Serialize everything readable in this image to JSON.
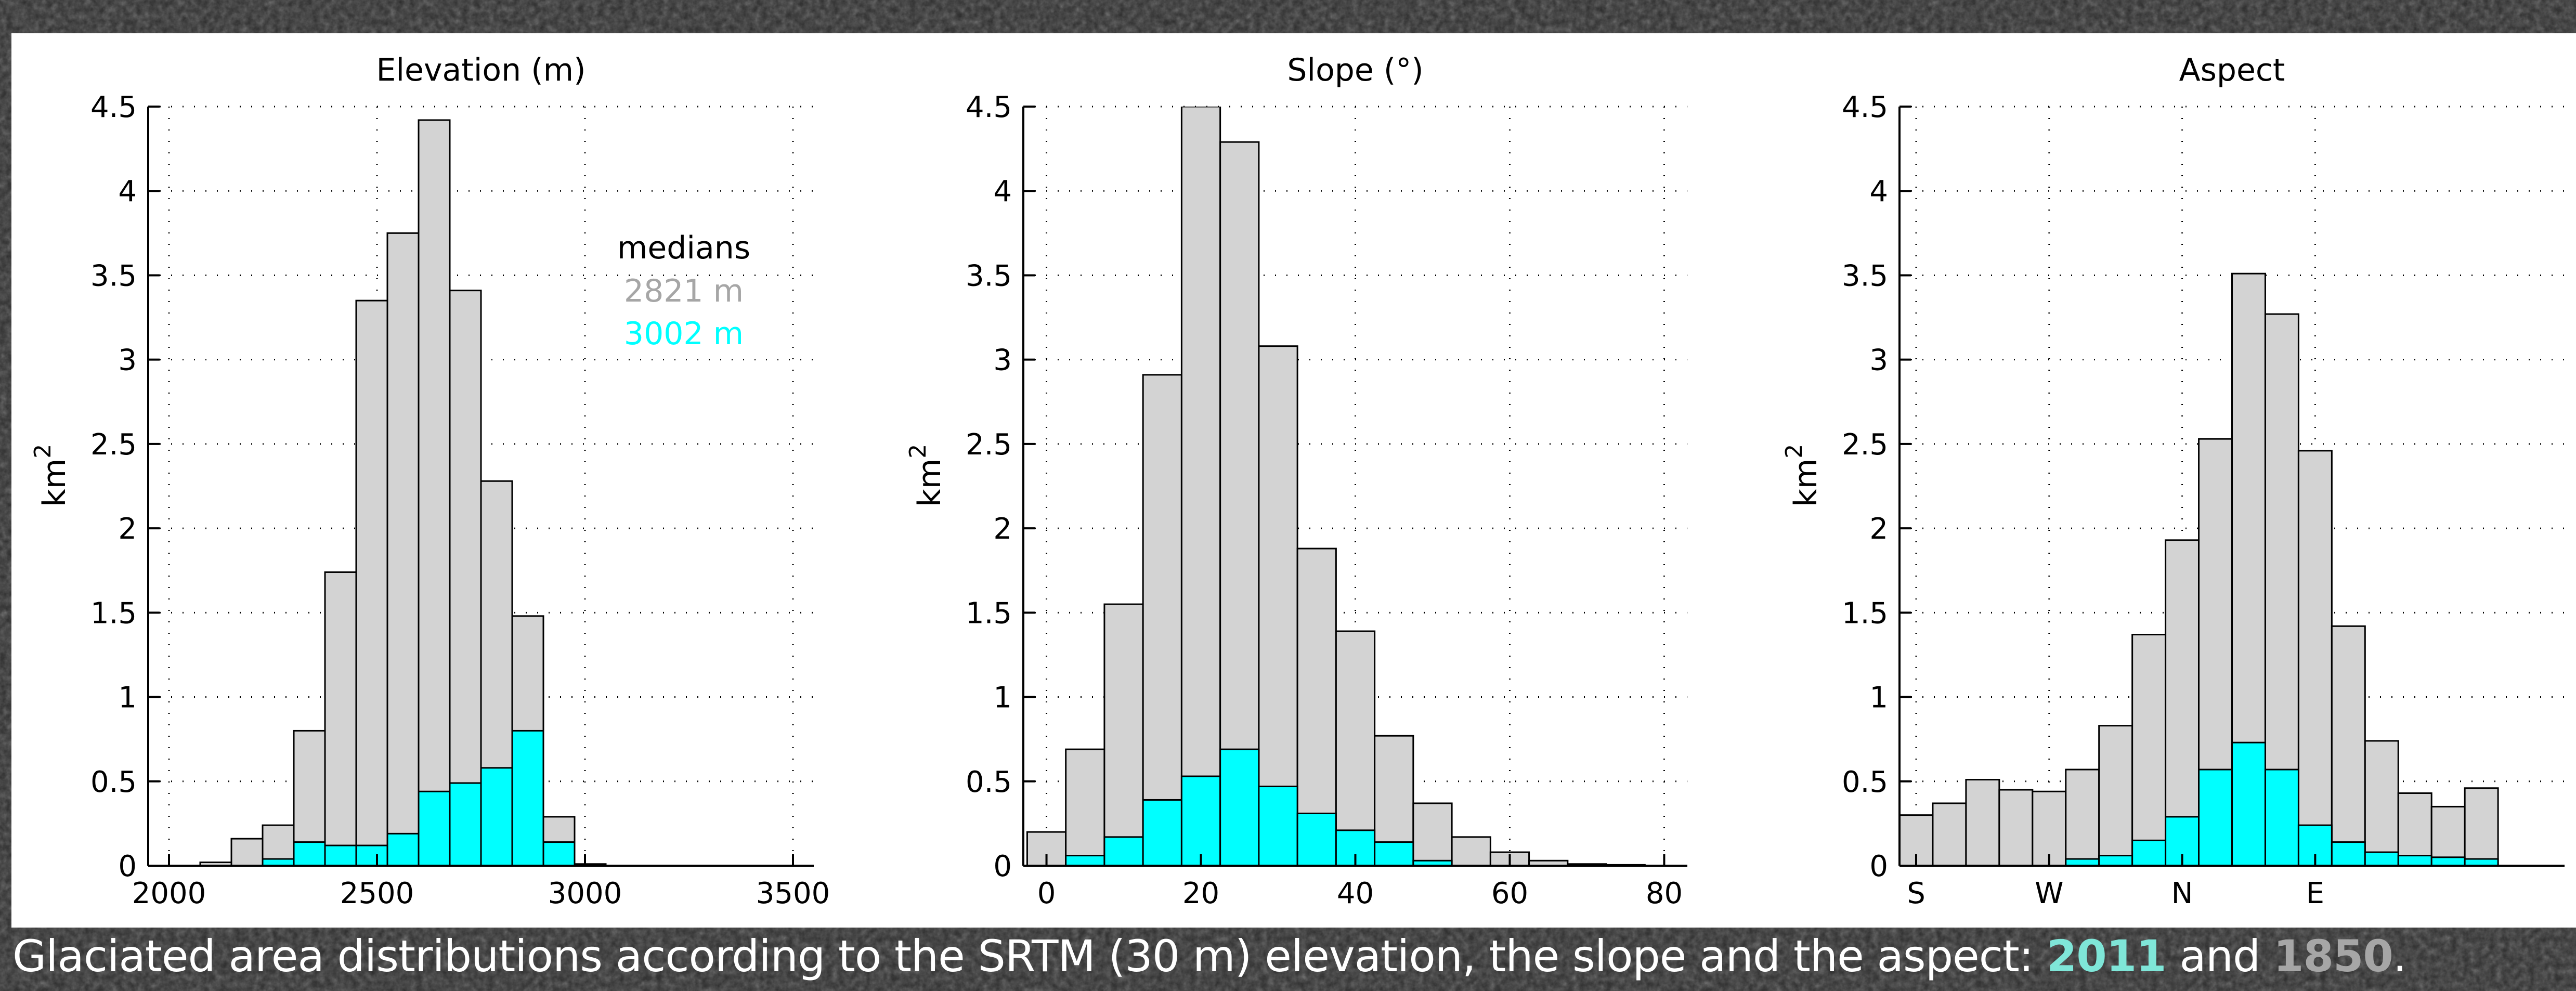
{
  "colors": {
    "recent": "#00ffff",
    "past": "#d3d3d3",
    "outline": "#000000",
    "caption_text": "#ffffff",
    "caption_2011": "#7fe6d8",
    "caption_1850": "#a6a6a6",
    "median_past": "#a6a6a6",
    "median_recent": "#00ffff",
    "background": "#2b2b2b"
  },
  "caption": {
    "text_before": "Glaciated area distributions according to the SRTM (30 m) elevation, the slope and the aspect: ",
    "year_recent": "2011",
    "joiner": " and ",
    "year_past": "1850",
    "text_after": "."
  },
  "chart_data": [
    {
      "type": "bar",
      "title": "Elevation (m)",
      "xlabel": "",
      "ylabel": "km",
      "ylabel_superscript": "2",
      "xlim": [
        1950,
        3550
      ],
      "ylim": [
        0,
        4.5
      ],
      "xticks": [
        2000,
        2500,
        3000,
        3500
      ],
      "xtick_labels": [
        "2000",
        "2500",
        "3000",
        "3500"
      ],
      "yticks": [
        0,
        0.5,
        1,
        1.5,
        2,
        2.5,
        3,
        3.5,
        4,
        4.5
      ],
      "ytick_labels": [
        "0",
        "0.5",
        "1",
        "1.5",
        "2",
        "2.5",
        "3",
        "3.5",
        "4",
        "4.5"
      ],
      "grid": true,
      "bin_edges": [
        2075,
        2150,
        2225,
        2300,
        2375,
        2450,
        2525,
        2600,
        2675,
        2750,
        2825,
        2900,
        2975,
        3050,
        3125,
        3200,
        3275
      ],
      "series": [
        {
          "name": "1850",
          "values": [
            0.02,
            0.16,
            0.24,
            0.8,
            1.74,
            3.35,
            3.75,
            4.42,
            3.41,
            2.28,
            1.48,
            0.29,
            0.01,
            0,
            0,
            0
          ],
          "color": "#d3d3d3"
        },
        {
          "name": "2011",
          "values": [
            0,
            0,
            0.04,
            0.14,
            0.12,
            0.12,
            0.19,
            0.44,
            0.49,
            0.58,
            0.8,
            0.14,
            0,
            0,
            0,
            0
          ],
          "color": "#00ffff"
        }
      ],
      "annotation": {
        "heading": "medians",
        "value_past": "2821 m",
        "value_recent": "3002 m"
      }
    },
    {
      "type": "bar",
      "title": "Slope (°)",
      "xlabel": "",
      "ylabel": "km",
      "ylabel_superscript": "2",
      "xlim": [
        -3,
        83
      ],
      "ylim": [
        0,
        4.5
      ],
      "xticks": [
        0,
        20,
        40,
        60,
        80
      ],
      "xtick_labels": [
        "0",
        "20",
        "40",
        "60",
        "80"
      ],
      "yticks": [
        0,
        0.5,
        1,
        1.5,
        2,
        2.5,
        3,
        3.5,
        4,
        4.5
      ],
      "ytick_labels": [
        "0",
        "0.5",
        "1",
        "1.5",
        "2",
        "2.5",
        "3",
        "3.5",
        "4",
        "4.5"
      ],
      "grid": true,
      "bin_edges": [
        -2.5,
        2.5,
        7.5,
        12.5,
        17.5,
        22.5,
        27.5,
        32.5,
        37.5,
        42.5,
        47.5,
        52.5,
        57.5,
        62.5,
        67.5,
        72.5,
        77.5,
        82.5
      ],
      "series": [
        {
          "name": "1850",
          "values": [
            0.2,
            0.69,
            1.55,
            2.91,
            4.5,
            4.29,
            3.08,
            1.88,
            1.39,
            0.77,
            0.37,
            0.17,
            0.08,
            0.03,
            0.01,
            0.005,
            0
          ],
          "color": "#d3d3d3"
        },
        {
          "name": "2011",
          "values": [
            0,
            0.06,
            0.17,
            0.39,
            0.53,
            0.69,
            0.47,
            0.31,
            0.21,
            0.14,
            0.03,
            0,
            0,
            0,
            0,
            0,
            0
          ],
          "color": "#00ffff"
        }
      ]
    },
    {
      "type": "bar",
      "title": "Aspect",
      "xlabel": "",
      "ylabel": "km",
      "ylabel_superscript": "2",
      "xlim": [
        0,
        20
      ],
      "ylim": [
        0,
        4.5
      ],
      "xticks": [
        0.5,
        4.5,
        8.5,
        12.5
      ],
      "xtick_labels": [
        "S",
        "W",
        "N",
        "E"
      ],
      "yticks": [
        0,
        0.5,
        1,
        1.5,
        2,
        2.5,
        3,
        3.5,
        4,
        4.5
      ],
      "ytick_labels": [
        "0",
        "0.5",
        "1",
        "1.5",
        "2",
        "2.5",
        "3",
        "3.5",
        "4",
        "4.5"
      ],
      "grid": true,
      "bin_edges": [
        0,
        1,
        2,
        3,
        4,
        5,
        6,
        7,
        8,
        9,
        10,
        11,
        12,
        13,
        14,
        15,
        16,
        17,
        18,
        19,
        20
      ],
      "series": [
        {
          "name": "1850",
          "values": [
            0.3,
            0.37,
            0.51,
            0.45,
            0.44,
            0.57,
            0.83,
            1.37,
            1.93,
            2.53,
            3.51,
            3.27,
            2.46,
            1.42,
            0.74,
            0.43,
            0.35,
            0.46,
            0,
            0
          ],
          "color": "#d3d3d3"
        },
        {
          "name": "2011",
          "values": [
            0,
            0,
            0,
            0,
            0,
            0.04,
            0.06,
            0.15,
            0.29,
            0.57,
            0.73,
            0.57,
            0.24,
            0.14,
            0.08,
            0.06,
            0.05,
            0.04,
            0,
            0
          ],
          "color": "#00ffff"
        }
      ]
    }
  ]
}
